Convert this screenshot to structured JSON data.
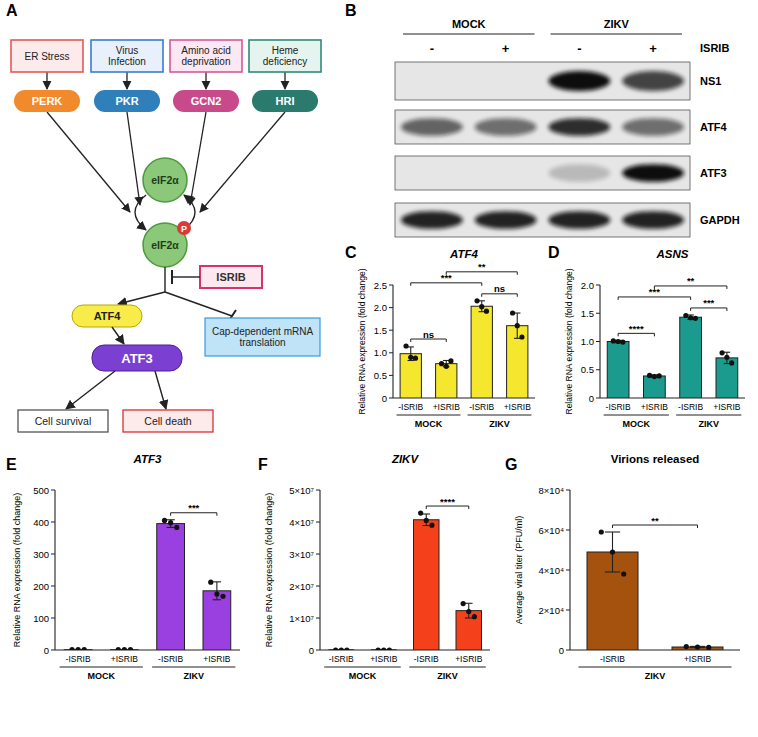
{
  "panel_labels": [
    "A",
    "B",
    "C",
    "D",
    "E",
    "F",
    "G"
  ],
  "diagram": {
    "stresses": [
      "ER Stress",
      "Virus Infection",
      "Amino acid deprivation",
      "Heme deficiency"
    ],
    "kinases": [
      "PERK",
      "PKR",
      "GCN2",
      "HRI"
    ],
    "eif2a": "eIF2α",
    "phospho": "P",
    "inhibitor": "ISRIB",
    "atf4": "ATF4",
    "translation": "Cap-dependent mRNA translation",
    "atf3": "ATF3",
    "outcomes": [
      "Cell survival",
      "Cell death"
    ]
  },
  "blot": {
    "conditions": [
      "MOCK",
      "ZIKV"
    ],
    "treatment": "ISRIB",
    "lanes": [
      "-",
      "+",
      "-",
      "+"
    ],
    "rows": [
      {
        "label": "NS1",
        "bands": [
          0,
          0,
          1,
          0.75
        ]
      },
      {
        "label": "ATF4",
        "bands": [
          0.6,
          0.55,
          0.85,
          0.55
        ]
      },
      {
        "label": "ATF3",
        "bands": [
          0,
          0,
          0.2,
          1
        ]
      },
      {
        "label": "GAPDH",
        "bands": [
          0.9,
          0.9,
          0.9,
          0.9
        ]
      }
    ]
  },
  "chart_data": [
    {
      "type": "bar",
      "title": "ATF4",
      "y_label": "Relative RNA expression (fold change)",
      "categories": [
        "-ISRIB",
        "+ISRIB",
        "-ISRIB",
        "+ISRIB"
      ],
      "groups": [
        "MOCK",
        "ZIKV"
      ],
      "values": [
        0.98,
        0.76,
        2.03,
        1.6
      ],
      "errors": [
        0.15,
        0.07,
        0.12,
        0.28
      ],
      "points": [
        [
          1.15,
          0.9,
          0.88
        ],
        [
          0.76,
          0.7,
          0.82
        ],
        [
          2.15,
          2.02,
          1.92
        ],
        [
          1.88,
          1.6,
          1.35
        ]
      ],
      "color": "#f5e62e",
      "ylim": [
        0,
        2.5
      ],
      "yticks": [
        0,
        0.5,
        {
          "value": 1,
          "label": "1.0"
        },
        1.5,
        {
          "value": 2,
          "label": "2.0"
        },
        2.5
      ],
      "significance": [
        {
          "from": 0,
          "to": 1,
          "label": "ns"
        },
        {
          "from": 2,
          "to": 3,
          "label": "ns"
        },
        {
          "from": 0,
          "to": 2,
          "label": "***"
        },
        {
          "from": 1,
          "to": 3,
          "label": "**"
        }
      ]
    },
    {
      "type": "bar",
      "title": "ASNS",
      "y_label": "Relative RNA expression (fold change)",
      "categories": [
        "-ISRIB",
        "+ISRIB",
        "-ISRIB",
        "+ISRIB"
      ],
      "groups": [
        "MOCK",
        "ZIKV"
      ],
      "values": [
        1.0,
        0.39,
        1.43,
        0.71
      ],
      "errors": [
        0.02,
        0.02,
        0.04,
        0.1
      ],
      "points": [
        [
          1.01,
          1.0,
          0.99
        ],
        [
          0.4,
          0.38,
          0.39
        ],
        [
          1.46,
          1.42,
          1.41
        ],
        [
          0.8,
          0.72,
          0.62
        ]
      ],
      "color": "#1b9a8e",
      "ylim": [
        0,
        2
      ],
      "yticks": [
        0,
        0.5,
        {
          "value": 1,
          "label": "1.0"
        },
        1.5,
        {
          "value": 2,
          "label": "2.0"
        }
      ],
      "significance": [
        {
          "from": 0,
          "to": 1,
          "label": "****"
        },
        {
          "from": 2,
          "to": 3,
          "label": "***"
        },
        {
          "from": 0,
          "to": 2,
          "label": "***"
        },
        {
          "from": 1,
          "to": 3,
          "label": "**"
        }
      ]
    },
    {
      "type": "bar",
      "title": "ATF3",
      "y_label": "Relative RNA expression (fold change)",
      "categories": [
        "-ISRIB",
        "+ISRIB",
        "-ISRIB",
        "+ISRIB"
      ],
      "groups": [
        "MOCK",
        "ZIKV"
      ],
      "values": [
        1,
        1,
        395,
        185
      ],
      "errors": [
        0,
        0,
        12,
        28
      ],
      "points": [
        [
          1,
          1,
          1
        ],
        [
          1,
          1,
          1
        ],
        [
          405,
          398,
          383
        ],
        [
          212,
          175,
          168
        ]
      ],
      "color": "#9a3fe0",
      "ylim": [
        0,
        500
      ],
      "yticks": [
        0,
        100,
        200,
        300,
        400,
        500
      ],
      "significance": [
        {
          "from": 2,
          "to": 3,
          "label": "***"
        }
      ]
    },
    {
      "type": "bar",
      "title": "ZIKV",
      "y_label": "Relative RNA expression (fold change)",
      "categories": [
        "-ISRIB",
        "+ISRIB",
        "-ISRIB",
        "+ISRIB"
      ],
      "groups": [
        "MOCK",
        "ZIKV"
      ],
      "values": [
        1,
        1,
        40700000,
        12300000
      ],
      "errors": [
        0,
        0,
        1800000,
        2300000
      ],
      "points": [
        [
          1,
          1,
          1
        ],
        [
          1,
          1,
          1
        ],
        [
          42800000,
          40500000,
          39000000
        ],
        [
          14500000,
          12000000,
          10400000
        ]
      ],
      "color": "#f4411c",
      "ylim": [
        0,
        50000000
      ],
      "yticks": [
        0,
        {
          "value": 10000000,
          "label": "1×10⁷"
        },
        {
          "value": 20000000,
          "label": "2×10⁷"
        },
        {
          "value": 30000000,
          "label": "3×10⁷"
        },
        {
          "value": 40000000,
          "label": "4×10⁷"
        },
        {
          "value": 50000000,
          "label": "5×10⁷"
        }
      ],
      "significance": [
        {
          "from": 2,
          "to": 3,
          "label": "****"
        }
      ]
    },
    {
      "type": "bar",
      "title": "Virions released",
      "y_label": "Average viral titer (PFU/ml)",
      "categories": [
        "-ISRIB",
        "+ISRIB"
      ],
      "groups": [
        "ZIKV"
      ],
      "values": [
        49000,
        1500
      ],
      "errors": [
        10000,
        300
      ],
      "points": [
        [
          59000,
          49000,
          38000
        ],
        [
          1700,
          1500,
          1300
        ]
      ],
      "color": "#a5520f",
      "ylim": [
        0,
        80000
      ],
      "yticks": [
        0,
        {
          "value": 20000,
          "label": "2×10⁴"
        },
        {
          "value": 40000,
          "label": "4×10⁴"
        },
        {
          "value": 60000,
          "label": "6×10⁴"
        },
        {
          "value": 80000,
          "label": "8×10⁴"
        }
      ],
      "significance": [
        {
          "from": 0,
          "to": 1,
          "label": "**"
        }
      ]
    }
  ]
}
